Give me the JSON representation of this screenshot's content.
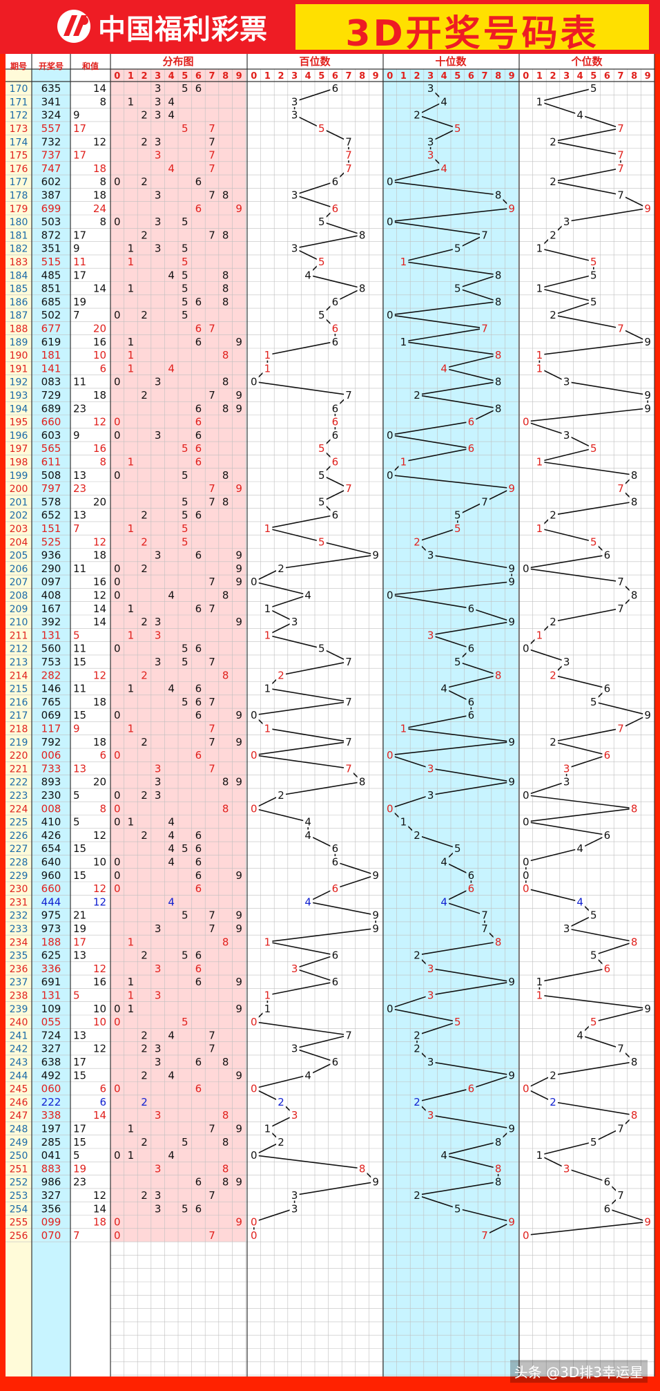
{
  "logo_text": "中国福利彩票",
  "title": "3D开奖号码表",
  "watermark": "头条 @3D排3幸运星",
  "colors": {
    "outer": "#ff2200",
    "col_issue": "#fffbd9",
    "col_draw": "#c8f4ff",
    "col_dist": "#ffd8d8",
    "col_ten": "#c8f4ff",
    "grid": "#bfbfbf",
    "red": "#e0201c",
    "blue": "#1020d0",
    "issue_text": "#1a6aa8",
    "black": "#111111"
  },
  "chart_data": {
    "type": "table",
    "columns": {
      "issue": "期号",
      "number": "开奖号",
      "sum": "和值",
      "distribution": "分布图",
      "hundreds": "百位数",
      "tens": "十位数",
      "units": "个位数"
    },
    "digits": [
      "0",
      "1",
      "2",
      "3",
      "4",
      "5",
      "6",
      "7",
      "8",
      "9"
    ],
    "draws": [
      [
        "170",
        "635"
      ],
      [
        "171",
        "341"
      ],
      [
        "172",
        "324"
      ],
      [
        "173",
        "557"
      ],
      [
        "174",
        "732"
      ],
      [
        "175",
        "737"
      ],
      [
        "176",
        "747"
      ],
      [
        "177",
        "602"
      ],
      [
        "178",
        "387"
      ],
      [
        "179",
        "699"
      ],
      [
        "180",
        "503"
      ],
      [
        "181",
        "872"
      ],
      [
        "182",
        "351"
      ],
      [
        "183",
        "515"
      ],
      [
        "184",
        "485"
      ],
      [
        "185",
        "851"
      ],
      [
        "186",
        "685"
      ],
      [
        "187",
        "502"
      ],
      [
        "188",
        "677"
      ],
      [
        "189",
        "619"
      ],
      [
        "190",
        "181"
      ],
      [
        "191",
        "141"
      ],
      [
        "192",
        "083"
      ],
      [
        "193",
        "729"
      ],
      [
        "194",
        "689"
      ],
      [
        "195",
        "660"
      ],
      [
        "196",
        "603"
      ],
      [
        "197",
        "565"
      ],
      [
        "198",
        "611"
      ],
      [
        "199",
        "508"
      ],
      [
        "200",
        "797"
      ],
      [
        "201",
        "578"
      ],
      [
        "202",
        "652"
      ],
      [
        "203",
        "151"
      ],
      [
        "204",
        "525"
      ],
      [
        "205",
        "936"
      ],
      [
        "206",
        "290"
      ],
      [
        "207",
        "097"
      ],
      [
        "208",
        "408"
      ],
      [
        "209",
        "167"
      ],
      [
        "210",
        "392"
      ],
      [
        "211",
        "131"
      ],
      [
        "212",
        "560"
      ],
      [
        "213",
        "753"
      ],
      [
        "214",
        "282"
      ],
      [
        "215",
        "146"
      ],
      [
        "216",
        "765"
      ],
      [
        "217",
        "069"
      ],
      [
        "218",
        "117"
      ],
      [
        "219",
        "792"
      ],
      [
        "220",
        "006"
      ],
      [
        "221",
        "733"
      ],
      [
        "222",
        "893"
      ],
      [
        "223",
        "230"
      ],
      [
        "224",
        "008"
      ],
      [
        "225",
        "410"
      ],
      [
        "226",
        "426"
      ],
      [
        "227",
        "654"
      ],
      [
        "228",
        "640"
      ],
      [
        "229",
        "960"
      ],
      [
        "230",
        "660"
      ],
      [
        "231",
        "444"
      ],
      [
        "232",
        "975"
      ],
      [
        "233",
        "973"
      ],
      [
        "234",
        "188"
      ],
      [
        "235",
        "625"
      ],
      [
        "236",
        "336"
      ],
      [
        "237",
        "691"
      ],
      [
        "238",
        "131"
      ],
      [
        "239",
        "109"
      ],
      [
        "240",
        "055"
      ],
      [
        "241",
        "724"
      ],
      [
        "242",
        "327"
      ],
      [
        "243",
        "638"
      ],
      [
        "244",
        "492"
      ],
      [
        "245",
        "060"
      ],
      [
        "246",
        "222"
      ],
      [
        "247",
        "338"
      ],
      [
        "248",
        "197"
      ],
      [
        "249",
        "285"
      ],
      [
        "250",
        "041"
      ],
      [
        "251",
        "883"
      ],
      [
        "252",
        "986"
      ],
      [
        "253",
        "327"
      ],
      [
        "254",
        "356"
      ],
      [
        "255",
        "099"
      ],
      [
        "256",
        "070"
      ]
    ]
  }
}
